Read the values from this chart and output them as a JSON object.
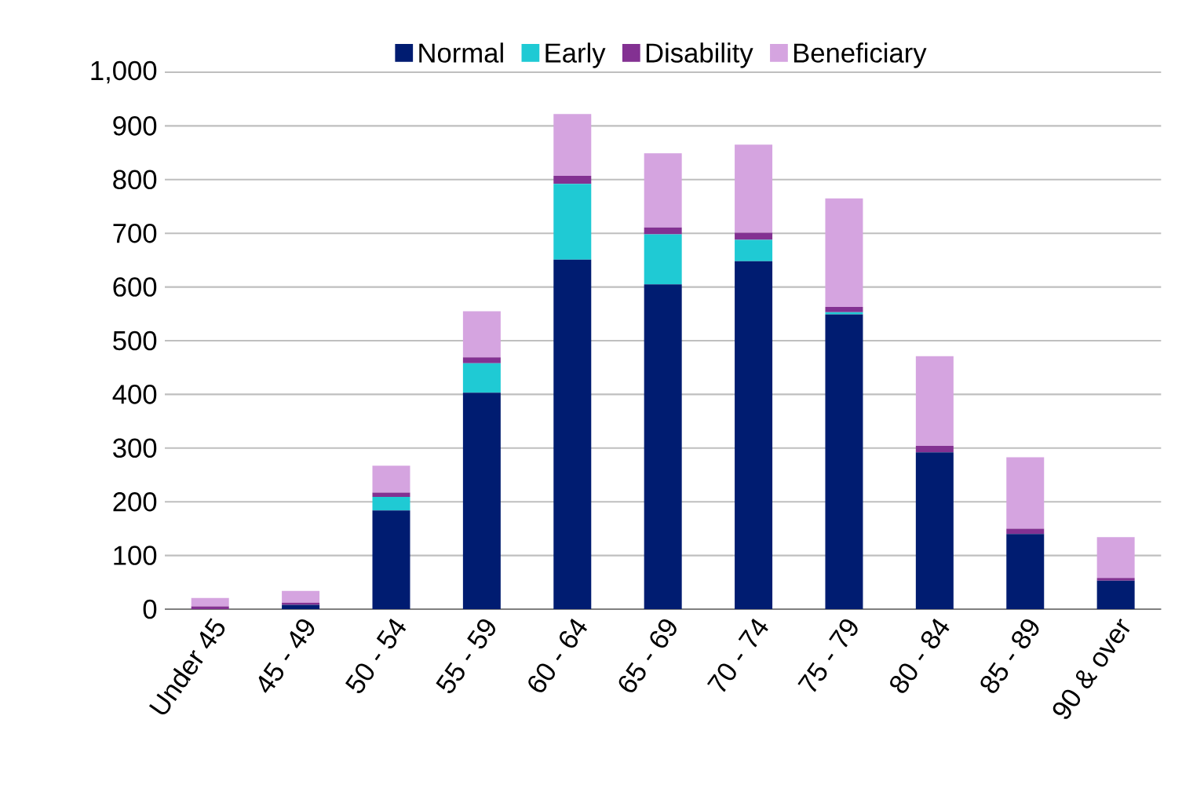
{
  "chart_data": {
    "type": "bar",
    "stacked": true,
    "grid": "y",
    "legend": "top",
    "categories": [
      "Under 45",
      "45 - 49",
      "50 - 54",
      "55 - 59",
      "60 - 64",
      "65 - 69",
      "70 - 74",
      "75 - 79",
      "80 - 84",
      "85 - 89",
      "90 & over"
    ],
    "series": [
      {
        "name": "Normal",
        "color": "#001c71",
        "values": [
          0,
          8,
          184,
          403,
          651,
          605,
          648,
          549,
          292,
          140,
          53
        ]
      },
      {
        "name": "Early",
        "color": "#1fcad4",
        "values": [
          0,
          0,
          25,
          55,
          141,
          93,
          40,
          4,
          0,
          0,
          0
        ]
      },
      {
        "name": "Disability",
        "color": "#833192",
        "values": [
          5,
          4,
          8,
          11,
          15,
          13,
          13,
          10,
          12,
          10,
          5
        ]
      },
      {
        "name": "Beneficiary",
        "color": "#d5a4e0",
        "values": [
          16,
          22,
          50,
          86,
          115,
          138,
          164,
          202,
          167,
          133,
          76
        ]
      }
    ],
    "ylim": [
      0,
      1000
    ],
    "yticks": [
      0,
      100,
      200,
      300,
      400,
      500,
      600,
      700,
      800,
      900,
      {
        "value": 1000,
        "label": "1,000"
      }
    ]
  }
}
